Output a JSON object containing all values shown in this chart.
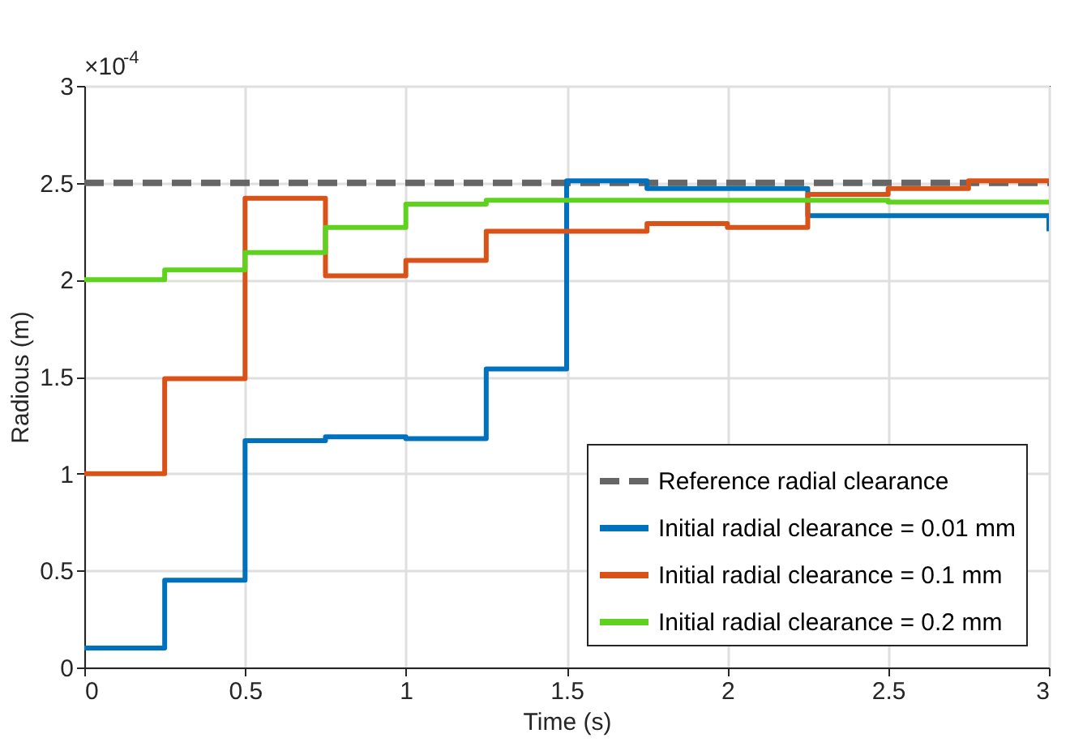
{
  "chart_data": {
    "type": "step",
    "xlabel": "Time (s)",
    "ylabel": "Radious (m)",
    "xlim": [
      0,
      3
    ],
    "xticks": [
      0,
      0.5,
      1,
      1.5,
      2,
      2.5,
      3
    ],
    "ylim": [
      0,
      3
    ],
    "yticks": [
      0,
      0.5,
      1,
      1.5,
      2,
      2.5,
      3
    ],
    "annotations": [
      "×10$^{-4}$"
    ],
    "grid": true,
    "legend": "bottom right",
    "line_style": "solid",
    "marker": "none",
    "ref_lines": [
      {
        "axis": "y",
        "value": 2.5,
        "label": "Reference radial clearance",
        "color": "#666666",
        "line_style": "dashed"
      }
    ],
    "series": [
      {
        "name": "Initial radial clearance = 0.01 mm",
        "color": "#0072bd",
        "x": [
          0,
          0.25,
          0.5,
          0.75,
          1,
          1.25,
          1.5,
          1.75,
          2.25,
          3,
          3
        ],
        "values": [
          0.1,
          0.45,
          1.17,
          1.19,
          1.18,
          1.54,
          2.51,
          2.47,
          2.33,
          2.33,
          2.25
        ]
      },
      {
        "name": "Initial radial clearance = 0.1 mm",
        "color": "#d95319",
        "x": [
          0,
          0.25,
          0.5,
          0.75,
          1,
          1.25,
          1.75,
          2,
          2.25,
          2.5,
          2.75,
          3
        ],
        "values": [
          1.0,
          1.49,
          2.42,
          2.02,
          2.1,
          2.25,
          2.29,
          2.27,
          2.44,
          2.47,
          2.51,
          2.51
        ]
      },
      {
        "name": "Initial radial clearance = 0.2 mm",
        "color": "#5ed21e",
        "x": [
          0,
          0.25,
          0.5,
          0.75,
          1,
          1.25,
          2.5,
          3
        ],
        "values": [
          2.0,
          2.05,
          2.14,
          2.27,
          2.39,
          2.41,
          2.4,
          2.4
        ]
      }
    ]
  }
}
